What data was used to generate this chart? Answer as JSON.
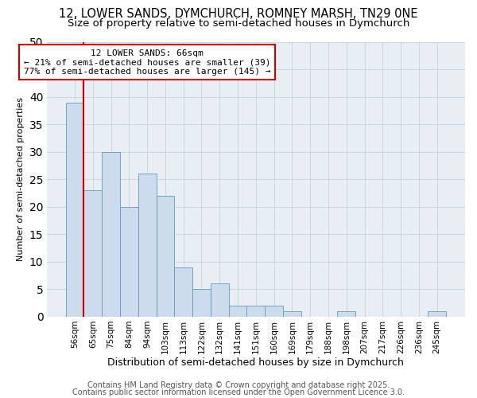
{
  "title_line1": "12, LOWER SANDS, DYMCHURCH, ROMNEY MARSH, TN29 0NE",
  "title_line2": "Size of property relative to semi-detached houses in Dymchurch",
  "categories": [
    "56sqm",
    "65sqm",
    "75sqm",
    "84sqm",
    "94sqm",
    "103sqm",
    "113sqm",
    "122sqm",
    "132sqm",
    "141sqm",
    "151sqm",
    "160sqm",
    "169sqm",
    "179sqm",
    "188sqm",
    "198sqm",
    "207sqm",
    "217sqm",
    "226sqm",
    "236sqm",
    "245sqm"
  ],
  "values": [
    39,
    23,
    30,
    20,
    26,
    22,
    9,
    5,
    6,
    2,
    2,
    2,
    1,
    0,
    0,
    1,
    0,
    0,
    0,
    0,
    1
  ],
  "bar_color": "#ccdcec",
  "bar_edge_color": "#6699bb",
  "red_line_index": 1,
  "annotation_title": "12 LOWER SANDS: 66sqm",
  "annotation_line2": "← 21% of semi-detached houses are smaller (39)",
  "annotation_line3": "77% of semi-detached houses are larger (145) →",
  "annotation_box_color": "#ffffff",
  "annotation_box_edge": "#cc0000",
  "red_line_color": "#cc0000",
  "ylabel": "Number of semi-detached properties",
  "xlabel": "Distribution of semi-detached houses by size in Dymchurch",
  "ylim": [
    0,
    50
  ],
  "yticks": [
    0,
    5,
    10,
    15,
    20,
    25,
    30,
    35,
    40,
    45,
    50
  ],
  "footer_line1": "Contains HM Land Registry data © Crown copyright and database right 2025.",
  "footer_line2": "Contains public sector information licensed under the Open Government Licence 3.0.",
  "background_color": "#ffffff",
  "plot_bg_color": "#e8eef4",
  "grid_color": "#c0ccd8",
  "title_fontsize": 10.5,
  "subtitle_fontsize": 9.5,
  "footer_fontsize": 7
}
